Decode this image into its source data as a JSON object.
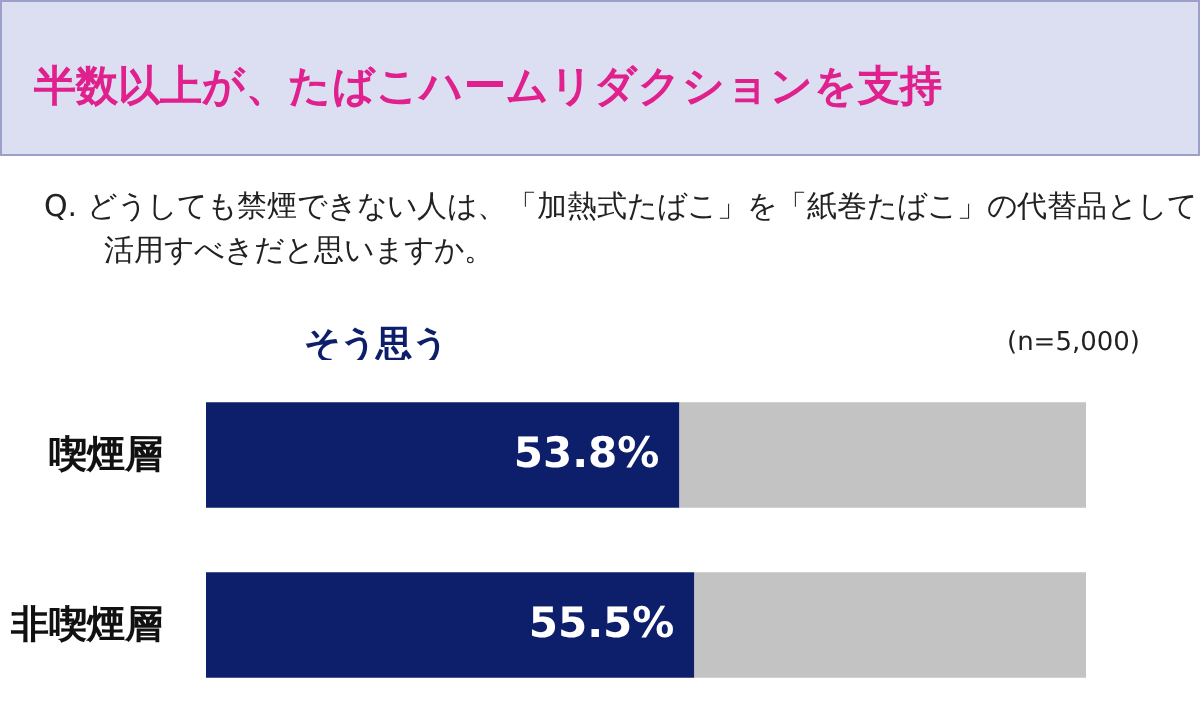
{
  "chart_data": {
    "type": "bar",
    "orientation": "horizontal",
    "stacked": true,
    "title": "半数以上が、たばこハームリダクションを支持",
    "subtitle": "Q. どうしても禁煙できない人は、「加熱式たばこ」を「紙巻たばこ」の代替品として活用すべきだと思いますか。",
    "annotations": [
      "(n=5,000)"
    ],
    "categories": [
      "喫煙層",
      "非喫煙層"
    ],
    "series": [
      {
        "name": "そう思う",
        "color": "#0d1f6b",
        "values": [
          53.8,
          55.5
        ],
        "value_labels": [
          "53.8%",
          "55.5%"
        ]
      },
      {
        "color": "#c3c3c3",
        "values": [
          46.2,
          44.5
        ]
      }
    ],
    "legend": "top left"
  }
}
